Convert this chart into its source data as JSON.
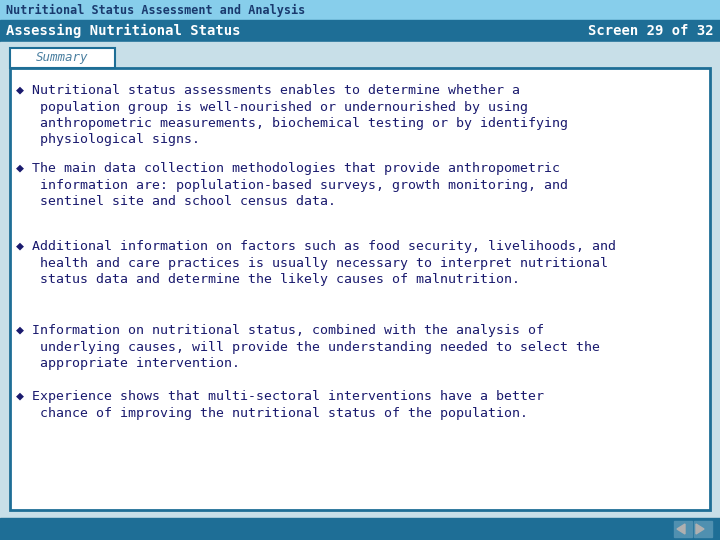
{
  "top_bar_color": "#87CEEB",
  "header_bar_color": "#1E6E96",
  "header_text": "Assessing Nutritional Status",
  "header_screen": "Screen 29 of 32",
  "title_bar_text": "Nutritional Status Assessment and Analysis",
  "summary_label": "Summary",
  "summary_label_color": "#4a7fa0",
  "summary_box_border": "#1E6E96",
  "content_box_border": "#1E6E96",
  "body_bg": "#c8dfe8",
  "content_bg": "#FFFFFF",
  "text_color": "#1a1a6e",
  "bullet_color": "#1a1a6e",
  "title_text_color": "#1a3a6e",
  "header_text_color": "#FFFFFF",
  "bullets": [
    "◆ Nutritional status assessments enables to determine whether a\n   population group is well-nourished or undernourished by using\n   anthropometric measurements, biochemical testing or by identifying\n   physiological signs.",
    "◆ The main data collection methodologies that provide anthropometric\n   information are: poplulation-based surveys, growth monitoring, and\n   sentinel site and school census data.",
    "◆ Additional information on factors such as food security, livelihoods, and\n   health and care practices is usually necessary to interpret nutritional\n   status data and determine the likely causes of malnutrition.",
    "◆ Information on nutritional status, combined with the analysis of\n   underlying causes, will provide the understanding needed to select the\n   appropriate intervention.",
    "◆ Experience shows that multi-sectoral interventions have a better\n   chance of improving the nutritional status of the population."
  ],
  "nav_bg": "#1E6E96",
  "font_size_title": 8.5,
  "font_size_header": 10,
  "font_size_body": 9.5,
  "font_size_summary": 9
}
